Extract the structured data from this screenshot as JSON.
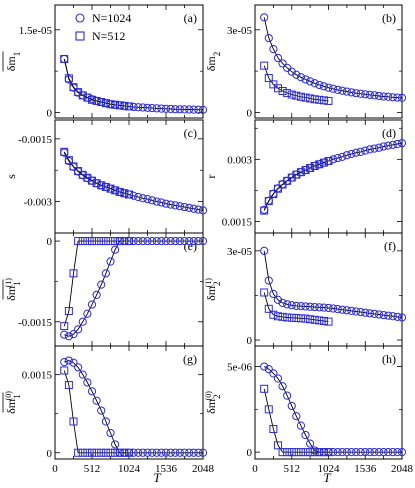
{
  "figure": {
    "x_axis_label": "T",
    "x_ticks": [
      "0",
      "512",
      "1024",
      "1536",
      "2048"
    ],
    "colors": {
      "marker": "#2b2bd6",
      "line": "#000000",
      "frame": "#000000"
    }
  },
  "legend": {
    "items": [
      {
        "marker": "circle",
        "label": "N=1024"
      },
      {
        "marker": "square",
        "label": "N=512"
      }
    ]
  },
  "chart_data": [
    {
      "panel": "(a)",
      "type": "scatter",
      "ylabel": "δm₁ (overlined)",
      "y_ticks": [
        "0",
        "1.5e-05"
      ],
      "xlim": [
        0,
        2048
      ],
      "ylim": [
        -1e-06,
        1.95e-05
      ],
      "y_tick_values": [
        0,
        1.5e-05
      ],
      "series": [
        {
          "name": "N=1024",
          "marker": "circle",
          "x": [
            128,
            192,
            256,
            320,
            384,
            448,
            512,
            576,
            640,
            704,
            768,
            832,
            896,
            960,
            1024,
            1088,
            1152,
            1216,
            1280,
            1344,
            1408,
            1472,
            1536,
            1600,
            1664,
            1728,
            1792,
            1856,
            1920,
            1984,
            2048
          ],
          "y": [
            9.7e-06,
            6e-06,
            4.5e-06,
            3.6e-06,
            3.1e-06,
            2.7e-06,
            2.4e-06,
            2.1e-06,
            1.9e-06,
            1.7e-06,
            1.5e-06,
            1.4e-06,
            1.3e-06,
            1.2e-06,
            1.1e-06,
            1e-06,
            9.5e-07,
            9e-07,
            8.5e-07,
            8e-07,
            7.5e-07,
            7e-07,
            6.7e-07,
            6.4e-07,
            6e-07,
            5.8e-07,
            5.6e-07,
            5.4e-07,
            5.2e-07,
            5e-07,
            4.8e-07
          ]
        },
        {
          "name": "N=512",
          "marker": "square",
          "x": [
            128,
            192,
            256,
            320,
            384,
            448,
            512,
            576,
            640,
            704,
            768,
            832,
            896,
            960,
            1024
          ],
          "y": [
            9.7e-06,
            6.2e-06,
            4.6e-06,
            3.7e-06,
            3.1e-06,
            2.7e-06,
            2.3e-06,
            2.1e-06,
            1.9e-06,
            1.7e-06,
            1.5e-06,
            1.4e-06,
            1.3e-06,
            1.2e-06,
            1.1e-06
          ]
        }
      ]
    },
    {
      "panel": "(b)",
      "type": "scatter",
      "ylabel": "δm₂ (overlined)",
      "y_ticks": [
        "0",
        "3e-05"
      ],
      "xlim": [
        0,
        2048
      ],
      "ylim": [
        -2e-06,
        3.9e-05
      ],
      "y_tick_values": [
        0,
        3e-05
      ],
      "series": [
        {
          "name": "N=1024",
          "marker": "circle",
          "x": [
            128,
            192,
            256,
            320,
            384,
            448,
            512,
            576,
            640,
            704,
            768,
            832,
            896,
            960,
            1024,
            1088,
            1152,
            1216,
            1280,
            1344,
            1408,
            1472,
            1536,
            1600,
            1664,
            1728,
            1792,
            1856,
            1920,
            1984,
            2048
          ],
          "y": [
            3.45e-05,
            2.7e-05,
            2.3e-05,
            1.98e-05,
            1.78e-05,
            1.62e-05,
            1.48e-05,
            1.37e-05,
            1.28e-05,
            1.2e-05,
            1.13e-05,
            1.06e-05,
            1e-05,
            9.5e-06,
            9e-06,
            8.6e-06,
            8.2e-06,
            7.9e-06,
            7.6e-06,
            7.3e-06,
            7e-06,
            6.8e-06,
            6.6e-06,
            6.4e-06,
            6.2e-06,
            6e-06,
            5.8e-06,
            5.7e-06,
            5.5e-06,
            5.4e-06,
            5.3e-06
          ]
        },
        {
          "name": "N=512",
          "marker": "square",
          "x": [
            128,
            192,
            256,
            320,
            384,
            448,
            512,
            576,
            640,
            704,
            768,
            832,
            896,
            960,
            1024
          ],
          "y": [
            1.7e-05,
            1.25e-05,
            1.02e-05,
            8.8e-06,
            7.8e-06,
            7.1e-06,
            6.5e-06,
            6.1e-06,
            5.7e-06,
            5.4e-06,
            5.1e-06,
            4.8e-06,
            4.6e-06,
            4.4e-06,
            4.2e-06
          ]
        }
      ]
    },
    {
      "panel": "(c)",
      "type": "scatter",
      "ylabel": "s",
      "y_ticks": [
        "-0.0015",
        "-0.003"
      ],
      "xlim": [
        0,
        2048
      ],
      "ylim": [
        -0.00375,
        -0.00105
      ],
      "y_tick_values": [
        -0.0015,
        -0.003
      ],
      "series": [
        {
          "name": "N=1024",
          "marker": "circle",
          "x": [
            128,
            192,
            256,
            320,
            384,
            448,
            512,
            576,
            640,
            704,
            768,
            832,
            896,
            960,
            1024,
            1088,
            1152,
            1216,
            1280,
            1344,
            1408,
            1472,
            1536,
            1600,
            1664,
            1728,
            1792,
            1856,
            1920,
            1984,
            2048
          ],
          "y": [
            -0.00183,
            -0.00203,
            -0.00217,
            -0.00228,
            -0.00237,
            -0.00244,
            -0.0025,
            -0.00256,
            -0.00261,
            -0.00265,
            -0.00269,
            -0.00273,
            -0.00277,
            -0.0028,
            -0.00283,
            -0.00286,
            -0.00289,
            -0.00292,
            -0.00294,
            -0.00297,
            -0.003,
            -0.00302,
            -0.00305,
            -0.00307,
            -0.00309,
            -0.00311,
            -0.00313,
            -0.00315,
            -0.00317,
            -0.00319,
            -0.00321
          ]
        },
        {
          "name": "N=512",
          "marker": "square",
          "x": [
            128,
            192,
            256,
            320,
            384,
            448,
            512,
            576,
            640,
            704,
            768,
            832,
            896,
            960,
            1024
          ],
          "y": [
            -0.00181,
            -0.00201,
            -0.00216,
            -0.00227,
            -0.00236,
            -0.00243,
            -0.0025,
            -0.00256,
            -0.00261,
            -0.00265,
            -0.00269,
            -0.00273,
            -0.00277,
            -0.0028,
            -0.00283
          ]
        }
      ]
    },
    {
      "panel": "(d)",
      "type": "scatter",
      "ylabel": "r",
      "y_ticks": [
        "0.003",
        "0.0015"
      ],
      "xlim": [
        0,
        2048
      ],
      "ylim": [
        0.00122,
        0.00395
      ],
      "y_tick_values": [
        0.003,
        0.0015
      ],
      "series": [
        {
          "name": "N=1024",
          "marker": "circle",
          "x": [
            128,
            192,
            256,
            320,
            384,
            448,
            512,
            576,
            640,
            704,
            768,
            832,
            896,
            960,
            1024,
            1088,
            1152,
            1216,
            1280,
            1344,
            1408,
            1472,
            1536,
            1600,
            1664,
            1728,
            1792,
            1856,
            1920,
            1984,
            2048
          ],
          "y": [
            0.00178,
            0.002,
            0.00217,
            0.0023,
            0.0024,
            0.00248,
            0.00256,
            0.00263,
            0.00269,
            0.00274,
            0.00279,
            0.00284,
            0.00288,
            0.00292,
            0.00296,
            0.003,
            0.00303,
            0.00306,
            0.0031,
            0.00313,
            0.00316,
            0.00318,
            0.00321,
            0.00324,
            0.00326,
            0.00328,
            0.00331,
            0.00333,
            0.00335,
            0.00337,
            0.00339
          ]
        },
        {
          "name": "N=512",
          "marker": "square",
          "x": [
            128,
            192,
            256,
            320,
            384,
            448,
            512,
            576,
            640,
            704,
            768,
            832,
            896,
            960,
            1024
          ],
          "y": [
            0.00176,
            0.00199,
            0.00216,
            0.00229,
            0.00239,
            0.00248,
            0.00256,
            0.00263,
            0.00269,
            0.00274,
            0.00279,
            0.00284,
            0.00288,
            0.00292,
            0.00296
          ]
        }
      ]
    },
    {
      "panel": "(e)",
      "type": "scatter",
      "ylabel": "δm₁⁽¹⁾ (overlined)",
      "y_ticks": [
        "0",
        "-0.0015"
      ],
      "xlim": [
        0,
        2048
      ],
      "ylim": [
        -0.00195,
        0.00015
      ],
      "y_tick_values": [
        0,
        -0.0015
      ],
      "series": [
        {
          "name": "N=1024",
          "marker": "circle",
          "x": [
            128,
            192,
            256,
            320,
            384,
            448,
            512,
            576,
            640,
            704,
            768,
            832,
            896,
            960,
            1024,
            1088,
            1152,
            1216,
            1280,
            1344,
            1408,
            1472,
            1536,
            1600,
            1664,
            1728,
            1792,
            1856,
            1920,
            1984,
            2048
          ],
          "y": [
            -0.00174,
            -0.00177,
            -0.00173,
            -0.00164,
            -0.0015,
            -0.00135,
            -0.00118,
            -0.001,
            -0.00081,
            -0.0006,
            -0.00038,
            -0.00016,
            0,
            0,
            0,
            0,
            0,
            0,
            0,
            0,
            0,
            0,
            0,
            0,
            0,
            0,
            0,
            0,
            0,
            0,
            0
          ]
        },
        {
          "name": "N=512",
          "marker": "square",
          "x": [
            128,
            192,
            256,
            320,
            384,
            448,
            512,
            576,
            640,
            704,
            768,
            832,
            896,
            960,
            1024
          ],
          "y": [
            -0.00158,
            -0.0013,
            -0.0006,
            0,
            0,
            0,
            0,
            0,
            0,
            0,
            0,
            0,
            0,
            0,
            0
          ]
        }
      ]
    },
    {
      "panel": "(f)",
      "type": "scatter",
      "ylabel": "δm₂⁽¹⁾ (overlined)",
      "y_ticks": [
        "0",
        "3e-05"
      ],
      "xlim": [
        0,
        2048
      ],
      "ylim": [
        -2e-06,
        3.6e-05
      ],
      "y_tick_values": [
        0,
        3e-05
      ],
      "series": [
        {
          "name": "N=1024",
          "marker": "circle",
          "x": [
            128,
            192,
            256,
            320,
            384,
            448,
            512,
            576,
            640,
            704,
            768,
            832,
            896,
            960,
            1024,
            1088,
            1152,
            1216,
            1280,
            1344,
            1408,
            1472,
            1536,
            1600,
            1664,
            1728,
            1792,
            1856,
            1920,
            1984,
            2048
          ],
          "y": [
            3e-05,
            2e-05,
            1.55e-05,
            1.35e-05,
            1.25e-05,
            1.2e-05,
            1.17e-05,
            1.15e-05,
            1.14e-05,
            1.13e-05,
            1.12e-05,
            1.11e-05,
            1.1e-05,
            1.09e-05,
            1.08e-05,
            1.06e-05,
            1.04e-05,
            1.02e-05,
            1e-05,
            9.8e-06,
            9.6e-06,
            9.4e-06,
            9.2e-06,
            9e-06,
            8.8e-06,
            8.6e-06,
            8.4e-06,
            8.2e-06,
            8e-06,
            7.8e-06,
            7.6e-06
          ]
        },
        {
          "name": "N=512",
          "marker": "square",
          "x": [
            128,
            192,
            256,
            320,
            384,
            448,
            512,
            576,
            640,
            704,
            768,
            832,
            896,
            960,
            1024
          ],
          "y": [
            1.6e-05,
            1.05e-05,
            8.5e-06,
            8e-06,
            7.8e-06,
            7.6e-06,
            7.5e-06,
            7.4e-06,
            7.3e-06,
            7.2e-06,
            7e-06,
            6.8e-06,
            6.6e-06,
            6.4e-06,
            6.2e-06
          ]
        }
      ]
    },
    {
      "panel": "(g)",
      "type": "scatter",
      "ylabel": "δm₁⁽⁰⁾ (overlined)",
      "y_ticks": [
        "0",
        "0.0015"
      ],
      "xlim": [
        0,
        2048
      ],
      "ylim": [
        -0.00012,
        0.00205
      ],
      "y_tick_values": [
        0,
        0.0015
      ],
      "series": [
        {
          "name": "N=1024",
          "marker": "circle",
          "x": [
            128,
            192,
            256,
            320,
            384,
            448,
            512,
            576,
            640,
            704,
            768,
            832,
            896,
            960,
            1024,
            1088,
            1152,
            1216,
            1280,
            1344,
            1408,
            1472,
            1536,
            1600,
            1664,
            1728,
            1792,
            1856,
            1920,
            1984,
            2048
          ],
          "y": [
            0.00174,
            0.00177,
            0.00173,
            0.00164,
            0.0015,
            0.00135,
            0.00118,
            0.001,
            0.00081,
            0.0006,
            0.00038,
            0.00016,
            0,
            0,
            0,
            0,
            0,
            0,
            0,
            0,
            0,
            0,
            0,
            0,
            0,
            0,
            0,
            0,
            0,
            0,
            0
          ]
        },
        {
          "name": "N=512",
          "marker": "square",
          "x": [
            128,
            192,
            256,
            320,
            384,
            448,
            512,
            576,
            640,
            704,
            768,
            832,
            896,
            960,
            1024
          ],
          "y": [
            0.00158,
            0.0013,
            0.0006,
            0,
            0,
            0,
            0,
            0,
            0,
            0,
            0,
            0,
            0,
            0,
            0
          ]
        }
      ]
    },
    {
      "panel": "(h)",
      "type": "scatter",
      "ylabel": "δm₂⁽⁰⁾ (overlined)",
      "y_ticks": [
        "0",
        "5e-06"
      ],
      "xlim": [
        0,
        2048
      ],
      "ylim": [
        -4e-07,
        6.2e-06
      ],
      "y_tick_values": [
        0,
        5e-06
      ],
      "series": [
        {
          "name": "N=1024",
          "marker": "circle",
          "x": [
            128,
            192,
            256,
            320,
            384,
            448,
            512,
            576,
            640,
            704,
            768,
            832,
            896,
            960,
            1024,
            1088,
            1152,
            1216,
            1280,
            1344,
            1408,
            1472,
            1536,
            1600,
            1664,
            1728,
            1792,
            1856,
            1920,
            1984,
            2048
          ],
          "y": [
            5e-06,
            4.85e-06,
            4.6e-06,
            4.3e-06,
            3.85e-06,
            3.3e-06,
            2.7e-06,
            2.1e-06,
            1.55e-06,
            1e-06,
            5e-07,
            1e-07,
            0,
            0,
            0,
            0,
            0,
            0,
            0,
            0,
            0,
            0,
            0,
            0,
            0,
            0,
            0,
            0,
            0,
            0,
            0
          ]
        },
        {
          "name": "N=512",
          "marker": "square",
          "x": [
            128,
            192,
            256,
            320,
            384,
            448,
            512,
            576,
            640,
            704,
            768,
            832,
            896,
            960,
            1024
          ],
          "y": [
            3.7e-06,
            2.5e-06,
            1.35e-06,
            4e-07,
            0,
            0,
            0,
            0,
            0,
            0,
            0,
            0,
            0,
            0,
            0
          ]
        }
      ]
    }
  ]
}
